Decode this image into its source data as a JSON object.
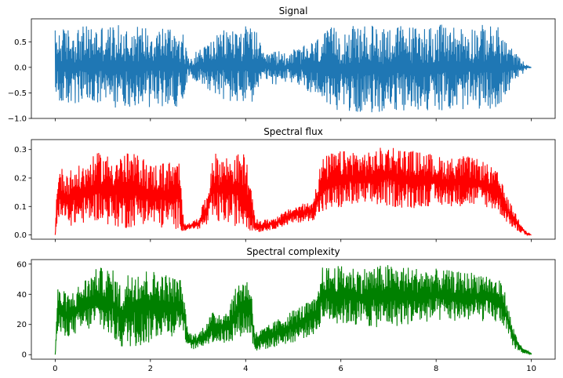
{
  "chart_data": [
    {
      "type": "line",
      "title": "Signal",
      "xlabel": "",
      "ylabel": "",
      "color": "#1f77b4",
      "xlim": [
        -0.5,
        10.5
      ],
      "ylim": [
        -1.0,
        0.95
      ],
      "yticks": [
        -1.0,
        -0.5,
        0.0,
        0.5
      ],
      "ytick_labels": [
        "−1.0",
        "−0.5",
        "0.0",
        "0.5"
      ],
      "xticks": [
        0,
        2,
        4,
        6,
        8,
        10
      ],
      "xtick_labels_visible": false,
      "grid": false,
      "legend": "none",
      "series": [
        {
          "kind": "envelope",
          "x": [
            0.0,
            0.05,
            0.5,
            1.0,
            1.5,
            2.0,
            2.5,
            2.65,
            2.8,
            3.0,
            3.2,
            3.4,
            3.6,
            4.0,
            4.2,
            4.4,
            4.5,
            4.8,
            5.0,
            5.3,
            5.5,
            5.8,
            6.0,
            6.5,
            7.0,
            7.5,
            8.0,
            8.5,
            9.0,
            9.3,
            9.5,
            9.7,
            9.9,
            10.0
          ],
          "upper": [
            0.76,
            0.76,
            0.8,
            0.84,
            0.82,
            0.83,
            0.83,
            0.8,
            0.18,
            0.35,
            0.5,
            0.63,
            0.78,
            0.82,
            0.78,
            0.2,
            0.33,
            0.32,
            0.35,
            0.45,
            0.58,
            0.78,
            0.8,
            0.82,
            0.84,
            0.82,
            0.84,
            0.82,
            0.84,
            0.8,
            0.5,
            0.25,
            0.05,
            0.0
          ],
          "lower": [
            -0.72,
            -0.74,
            -0.76,
            -0.8,
            -0.78,
            -0.78,
            -0.78,
            -0.75,
            -0.18,
            -0.3,
            -0.42,
            -0.55,
            -0.7,
            -0.74,
            -0.68,
            -0.2,
            -0.34,
            -0.34,
            -0.3,
            -0.46,
            -0.6,
            -0.8,
            -0.86,
            -0.9,
            -0.88,
            -0.86,
            -0.84,
            -0.84,
            -0.82,
            -0.8,
            -0.52,
            -0.25,
            -0.05,
            0.0
          ]
        }
      ]
    },
    {
      "type": "line",
      "title": "Spectral flux",
      "xlabel": "",
      "ylabel": "",
      "color": "#ff0000",
      "xlim": [
        -0.5,
        10.5
      ],
      "ylim": [
        -0.015,
        0.335
      ],
      "yticks": [
        0.0,
        0.1,
        0.2,
        0.3
      ],
      "ytick_labels": [
        "0.0",
        "0.1",
        "0.2",
        "0.3"
      ],
      "xticks": [
        0,
        2,
        4,
        6,
        8,
        10
      ],
      "xtick_labels_visible": false,
      "grid": false,
      "legend": "none",
      "series": [
        {
          "kind": "envelope",
          "x": [
            0.0,
            0.05,
            0.3,
            0.6,
            0.9,
            1.2,
            1.5,
            1.8,
            2.0,
            2.3,
            2.6,
            2.7,
            2.8,
            3.0,
            3.2,
            3.3,
            3.6,
            4.0,
            4.2,
            4.3,
            4.6,
            5.0,
            5.4,
            5.6,
            5.8,
            6.2,
            6.6,
            7.0,
            7.4,
            7.8,
            8.2,
            8.6,
            9.0,
            9.3,
            9.5,
            9.7,
            9.9,
            10.0
          ],
          "upper": [
            0.0,
            0.24,
            0.23,
            0.25,
            0.29,
            0.28,
            0.29,
            0.28,
            0.25,
            0.26,
            0.26,
            0.05,
            0.04,
            0.06,
            0.15,
            0.29,
            0.28,
            0.29,
            0.06,
            0.05,
            0.06,
            0.1,
            0.12,
            0.27,
            0.29,
            0.3,
            0.29,
            0.32,
            0.3,
            0.29,
            0.27,
            0.28,
            0.26,
            0.22,
            0.13,
            0.07,
            0.01,
            0.0
          ],
          "lower": [
            0.0,
            0.04,
            0.03,
            0.04,
            0.05,
            0.03,
            0.02,
            0.04,
            0.03,
            0.02,
            0.02,
            0.01,
            0.02,
            0.02,
            0.03,
            0.04,
            0.04,
            0.02,
            0.01,
            0.01,
            0.02,
            0.04,
            0.05,
            0.07,
            0.08,
            0.1,
            0.1,
            0.1,
            0.09,
            0.1,
            0.1,
            0.1,
            0.1,
            0.08,
            0.04,
            0.01,
            0.0,
            0.0
          ]
        }
      ]
    },
    {
      "type": "line",
      "title": "Spectral complexity",
      "xlabel": "",
      "ylabel": "",
      "color": "#008000",
      "xlim": [
        -0.5,
        10.5
      ],
      "ylim": [
        -3,
        63
      ],
      "yticks": [
        0,
        20,
        40,
        60
      ],
      "ytick_labels": [
        "0",
        "20",
        "40",
        "60"
      ],
      "xticks": [
        0,
        2,
        4,
        6,
        8,
        10
      ],
      "xtick_labels": [
        "0",
        "2",
        "4",
        "6",
        "8",
        "10"
      ],
      "xtick_labels_visible": true,
      "grid": false,
      "legend": "none",
      "series": [
        {
          "kind": "envelope",
          "x": [
            0.0,
            0.05,
            0.3,
            0.6,
            0.9,
            1.2,
            1.4,
            1.6,
            1.9,
            2.2,
            2.5,
            2.65,
            2.8,
            3.0,
            3.3,
            3.6,
            3.9,
            4.1,
            4.2,
            4.5,
            5.0,
            5.5,
            5.6,
            6.0,
            6.5,
            7.0,
            7.5,
            8.0,
            8.5,
            9.0,
            9.4,
            9.6,
            9.8,
            10.0
          ],
          "upper": [
            0.0,
            45.0,
            40.0,
            50.0,
            58.0,
            57.0,
            45.0,
            60.0,
            57.0,
            55.0,
            52.0,
            50.0,
            15.0,
            14.0,
            28.0,
            30.0,
            52.0,
            50.0,
            15.0,
            20.0,
            30.0,
            38.0,
            58.0,
            59.0,
            58.0,
            60.0,
            58.0,
            57.0,
            55.0,
            55.0,
            48.0,
            20.0,
            5.0,
            1.0
          ],
          "lower": [
            0.0,
            12.0,
            12.0,
            15.0,
            18.0,
            10.0,
            4.0,
            5.0,
            6.0,
            12.0,
            12.0,
            18.0,
            3.0,
            4.0,
            8.0,
            7.0,
            12.0,
            12.0,
            2.0,
            4.0,
            8.0,
            14.0,
            22.0,
            20.0,
            18.0,
            18.0,
            20.0,
            22.0,
            22.0,
            22.0,
            20.0,
            5.0,
            1.0,
            0.0
          ]
        }
      ]
    }
  ]
}
